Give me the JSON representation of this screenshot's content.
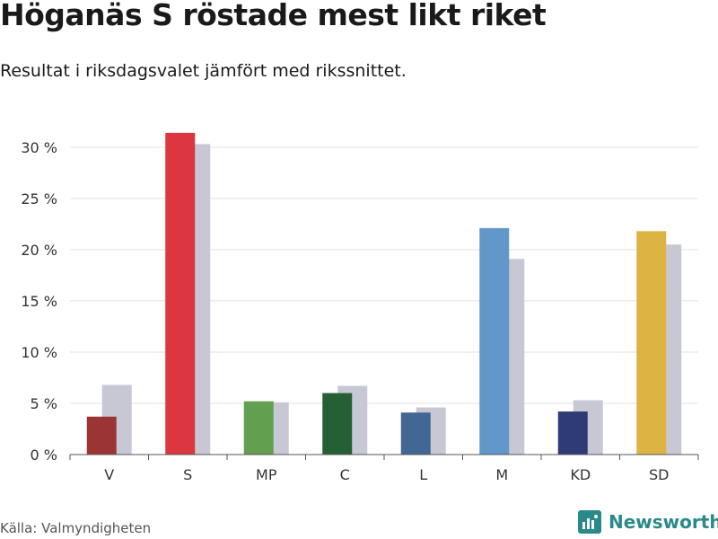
{
  "header": {
    "title": "Höganäs S röstade mest likt riket",
    "subtitle": "Resultat i riksdagsvalet jämfört med rikssnittet."
  },
  "footer": {
    "source": "Källa: Valmyndigheten",
    "brand": "Newsworthy",
    "brand_color": "#2a8a8a"
  },
  "chart_data": {
    "type": "bar",
    "categories": [
      "V",
      "S",
      "MP",
      "C",
      "L",
      "M",
      "KD",
      "SD"
    ],
    "series": [
      {
        "values": [
          3.7,
          31.4,
          5.2,
          6.0,
          4.1,
          22.1,
          4.2,
          21.8
        ],
        "colors": [
          "#9b3535",
          "#dc3640",
          "#62a04f",
          "#255f34",
          "#426792",
          "#6197c9",
          "#2f3b74",
          "#ddb443"
        ]
      },
      {
        "values": [
          6.8,
          30.3,
          5.1,
          6.7,
          4.6,
          19.1,
          5.3,
          20.5
        ],
        "color": "#c8c8d4"
      }
    ],
    "ylim": [
      0,
      32
    ],
    "yticks": [
      0,
      5,
      10,
      15,
      20,
      25,
      30
    ],
    "ytick_labels": [
      "0 %",
      "5 %",
      "10 %",
      "15 %",
      "20 %",
      "25 %",
      "30 %"
    ],
    "grid": true,
    "xlabel": "",
    "ylabel": ""
  }
}
